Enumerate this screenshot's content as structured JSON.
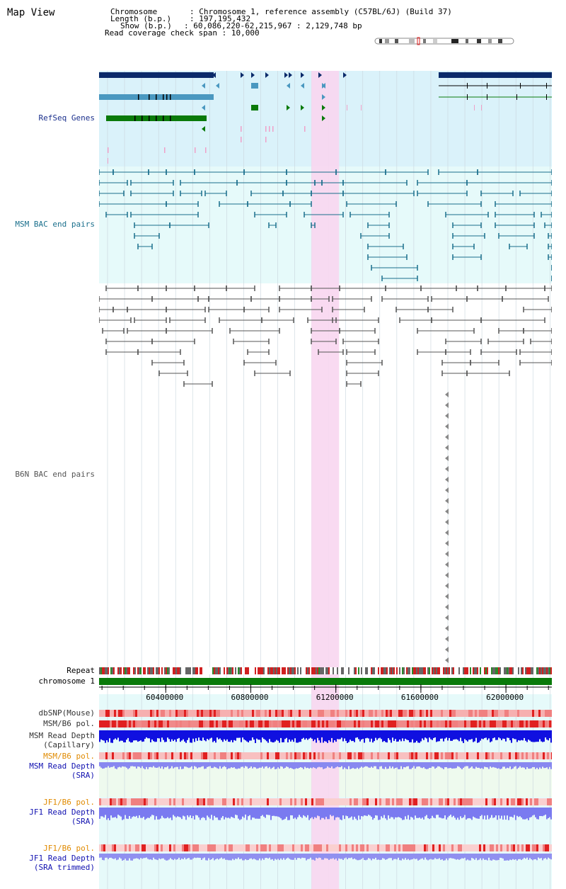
{
  "title": "Map View",
  "info": {
    "chromosome_key": "Chromosome",
    "chromosome_value": "Chromosome 1, reference assembly (C57BL/6J) (Build 37)",
    "length_key": "Length (b.p.)",
    "length_value": "197,195,432",
    "show_key": "Show (b.p.)",
    "show_value": "60,086,220-62,215,967 : 2,129,748 bp",
    "coverage_key": "Read coverage check span",
    "coverage_value": "10,000",
    "sep": ":"
  },
  "view": {
    "start": 60086220,
    "end": 62215967
  },
  "highlight": {
    "start": 61085000,
    "end": 61215000
  },
  "axis_ticks": [
    {
      "pos": 60400000,
      "label": "60400000"
    },
    {
      "pos": 60800000,
      "label": "60800000"
    },
    {
      "pos": 61200000,
      "label": "61200000"
    },
    {
      "pos": 61600000,
      "label": "61600000"
    },
    {
      "pos": 62000000,
      "label": "62000000"
    }
  ],
  "tracks": {
    "refseq": {
      "label": "RefSeq Genes",
      "color": "#1a2f8c"
    },
    "msm_bac": {
      "label": "MSM BAC end pairs",
      "color": "#1a6f8c"
    },
    "b6n_bac": {
      "label": "B6N BAC end pairs",
      "color": "#555555"
    },
    "repeat": {
      "label": "Repeat"
    },
    "chromosome": {
      "label": "chromosome 1"
    },
    "dbsnp": {
      "label": "dbSNP(Mouse)"
    },
    "msm_b6_pol": {
      "label": "MSM/B6 pol."
    },
    "msm_depth_cap": {
      "label1": "MSM Read Depth",
      "label2": "(Capillary)"
    },
    "msm_b6_pol2": {
      "label": "MSM/B6 pol."
    },
    "msm_depth_sra": {
      "label1": "MSM Read Depth",
      "label2": "(SRA)"
    },
    "jf1_b6_pol": {
      "label": "JF1/B6 pol."
    },
    "jf1_depth_sra": {
      "label1": "JF1 Read Depth",
      "label2": "(SRA)"
    },
    "jf1_b6_pol2": {
      "label": "JF1/B6 pol."
    },
    "jf1_depth_trim": {
      "label1": "JF1 Read Depth",
      "label2": "(SRA trimmed)"
    }
  },
  "colors": {
    "refseq_bg": "#daf2fa",
    "msm_bg": "#e6fafa",
    "highlight": "#f8d6f0",
    "chromosome": "#0a7a0a",
    "snp_red": "#e03030",
    "depth_blue": "#1010e0",
    "depth_light": "#8888f0",
    "navy": "#0a2a6a"
  }
}
